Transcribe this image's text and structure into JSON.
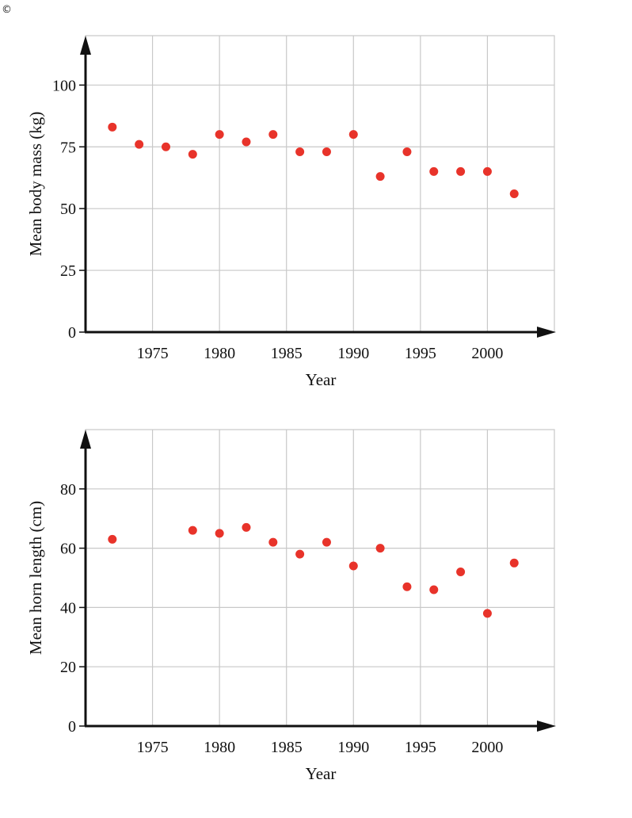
{
  "copyright_symbol": "©",
  "chart_data": [
    {
      "type": "scatter",
      "title": "",
      "xlabel": "Year",
      "ylabel": "Mean body mass (kg)",
      "xlim": [
        1970,
        2005
      ],
      "ylim": [
        0,
        120
      ],
      "xticks": [
        1975,
        1980,
        1985,
        1990,
        1995,
        2000
      ],
      "yticks": [
        0,
        25,
        50,
        75,
        100
      ],
      "grid": true,
      "marker_color": "#e8332a",
      "x": [
        1972,
        1974,
        1976,
        1978,
        1980,
        1982,
        1984,
        1986,
        1988,
        1990,
        1992,
        1994,
        1996,
        1998,
        2000,
        2002
      ],
      "y": [
        83,
        76,
        75,
        72,
        80,
        77,
        80,
        73,
        73,
        80,
        63,
        73,
        65,
        65,
        65,
        56
      ]
    },
    {
      "type": "scatter",
      "title": "",
      "xlabel": "Year",
      "ylabel": "Mean horn length (cm)",
      "xlim": [
        1970,
        2005
      ],
      "ylim": [
        0,
        100
      ],
      "xticks": [
        1975,
        1980,
        1985,
        1990,
        1995,
        2000
      ],
      "yticks": [
        0,
        20,
        40,
        60,
        80
      ],
      "grid": true,
      "marker_color": "#e8332a",
      "x": [
        1972,
        1978,
        1980,
        1982,
        1984,
        1986,
        1988,
        1990,
        1992,
        1994,
        1996,
        1998,
        2000,
        2002
      ],
      "y": [
        63,
        66,
        65,
        67,
        62,
        58,
        62,
        54,
        60,
        47,
        46,
        52,
        38,
        55
      ]
    }
  ]
}
